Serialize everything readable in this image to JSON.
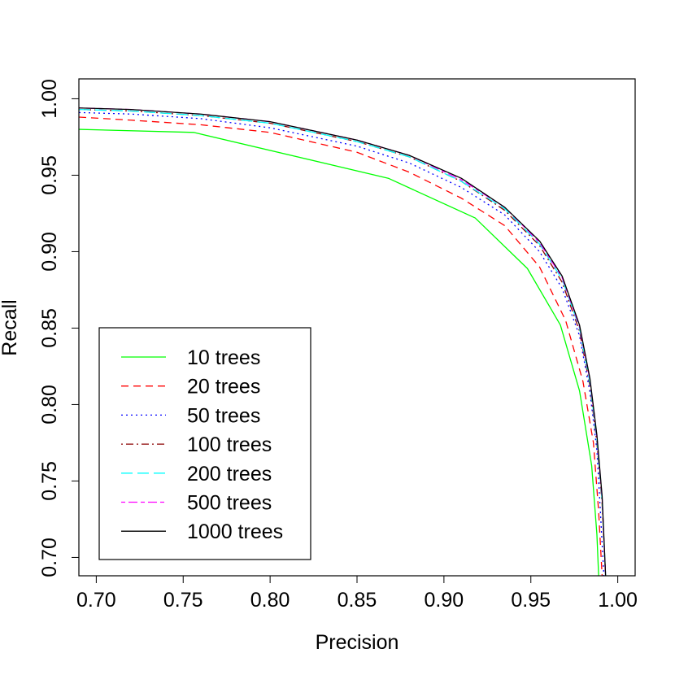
{
  "chart_data": {
    "type": "line",
    "title": "",
    "xlabel": "Precision",
    "ylabel": "Recall",
    "xlim": [
      0.69,
      1.01
    ],
    "ylim": [
      0.688,
      1.013
    ],
    "xticks": [
      0.7,
      0.75,
      0.8,
      0.85,
      0.9,
      0.95,
      1.0
    ],
    "yticks": [
      0.7,
      0.75,
      0.8,
      0.85,
      0.9,
      0.95,
      1.0
    ],
    "xtick_labels": [
      "0.70",
      "0.75",
      "0.80",
      "0.85",
      "0.90",
      "0.95",
      "1.00"
    ],
    "ytick_labels": [
      "0.70",
      "0.75",
      "0.80",
      "0.85",
      "0.90",
      "0.95",
      "1.00"
    ],
    "grid": false,
    "legend_position": "bottom-left",
    "series": [
      {
        "name": "10 trees",
        "color": "#00ff00",
        "dash": "solid",
        "x": [
          0.69,
          0.756,
          0.868,
          0.918,
          0.948,
          0.967,
          0.978,
          0.985,
          0.988,
          0.989
        ],
        "y": [
          0.98,
          0.978,
          0.948,
          0.922,
          0.889,
          0.852,
          0.809,
          0.76,
          0.715,
          0.688
        ]
      },
      {
        "name": "20 trees",
        "color": "#ff0000",
        "dash": "dashed",
        "x": [
          0.69,
          0.72,
          0.76,
          0.8,
          0.85,
          0.88,
          0.91,
          0.935,
          0.955,
          0.97,
          0.98,
          0.986,
          0.989,
          0.991
        ],
        "y": [
          0.988,
          0.986,
          0.983,
          0.978,
          0.965,
          0.952,
          0.935,
          0.917,
          0.89,
          0.855,
          0.815,
          0.775,
          0.73,
          0.688
        ]
      },
      {
        "name": "50 trees",
        "color": "#0000ff",
        "dash": "dotted",
        "x": [
          0.69,
          0.72,
          0.76,
          0.8,
          0.85,
          0.88,
          0.91,
          0.935,
          0.955,
          0.968,
          0.978,
          0.984,
          0.988,
          0.99,
          0.992
        ],
        "y": [
          0.991,
          0.99,
          0.987,
          0.981,
          0.969,
          0.958,
          0.942,
          0.924,
          0.9,
          0.876,
          0.845,
          0.808,
          0.77,
          0.73,
          0.688
        ]
      },
      {
        "name": "100 trees",
        "color": "#8b0000",
        "dash": "dotdash",
        "x": [
          0.69,
          0.72,
          0.76,
          0.8,
          0.85,
          0.88,
          0.91,
          0.935,
          0.955,
          0.968,
          0.978,
          0.984,
          0.988,
          0.991,
          0.993
        ],
        "y": [
          0.993,
          0.992,
          0.989,
          0.984,
          0.972,
          0.962,
          0.946,
          0.927,
          0.904,
          0.88,
          0.848,
          0.812,
          0.775,
          0.735,
          0.688
        ]
      },
      {
        "name": "200 trees",
        "color": "#00ffff",
        "dash": "longdash",
        "x": [
          0.69,
          0.72,
          0.76,
          0.8,
          0.85,
          0.88,
          0.91,
          0.935,
          0.955,
          0.968,
          0.978,
          0.984,
          0.988,
          0.991,
          0.993
        ],
        "y": [
          0.993,
          0.992,
          0.989,
          0.984,
          0.972,
          0.962,
          0.946,
          0.928,
          0.905,
          0.882,
          0.85,
          0.814,
          0.777,
          0.737,
          0.688
        ]
      },
      {
        "name": "500 trees",
        "color": "#ff00ff",
        "dash": "twodash",
        "x": [
          0.69,
          0.72,
          0.76,
          0.8,
          0.85,
          0.88,
          0.91,
          0.935,
          0.955,
          0.968,
          0.978,
          0.984,
          0.988,
          0.991,
          0.993
        ],
        "y": [
          0.994,
          0.993,
          0.99,
          0.985,
          0.973,
          0.963,
          0.947,
          0.929,
          0.906,
          0.883,
          0.851,
          0.816,
          0.779,
          0.739,
          0.688
        ]
      },
      {
        "name": "1000 trees",
        "color": "#000000",
        "dash": "solid",
        "x": [
          0.69,
          0.72,
          0.76,
          0.8,
          0.85,
          0.88,
          0.91,
          0.935,
          0.955,
          0.968,
          0.978,
          0.984,
          0.988,
          0.991,
          0.993
        ],
        "y": [
          0.994,
          0.993,
          0.99,
          0.985,
          0.973,
          0.963,
          0.948,
          0.929,
          0.907,
          0.884,
          0.852,
          0.817,
          0.78,
          0.74,
          0.688
        ]
      }
    ]
  }
}
